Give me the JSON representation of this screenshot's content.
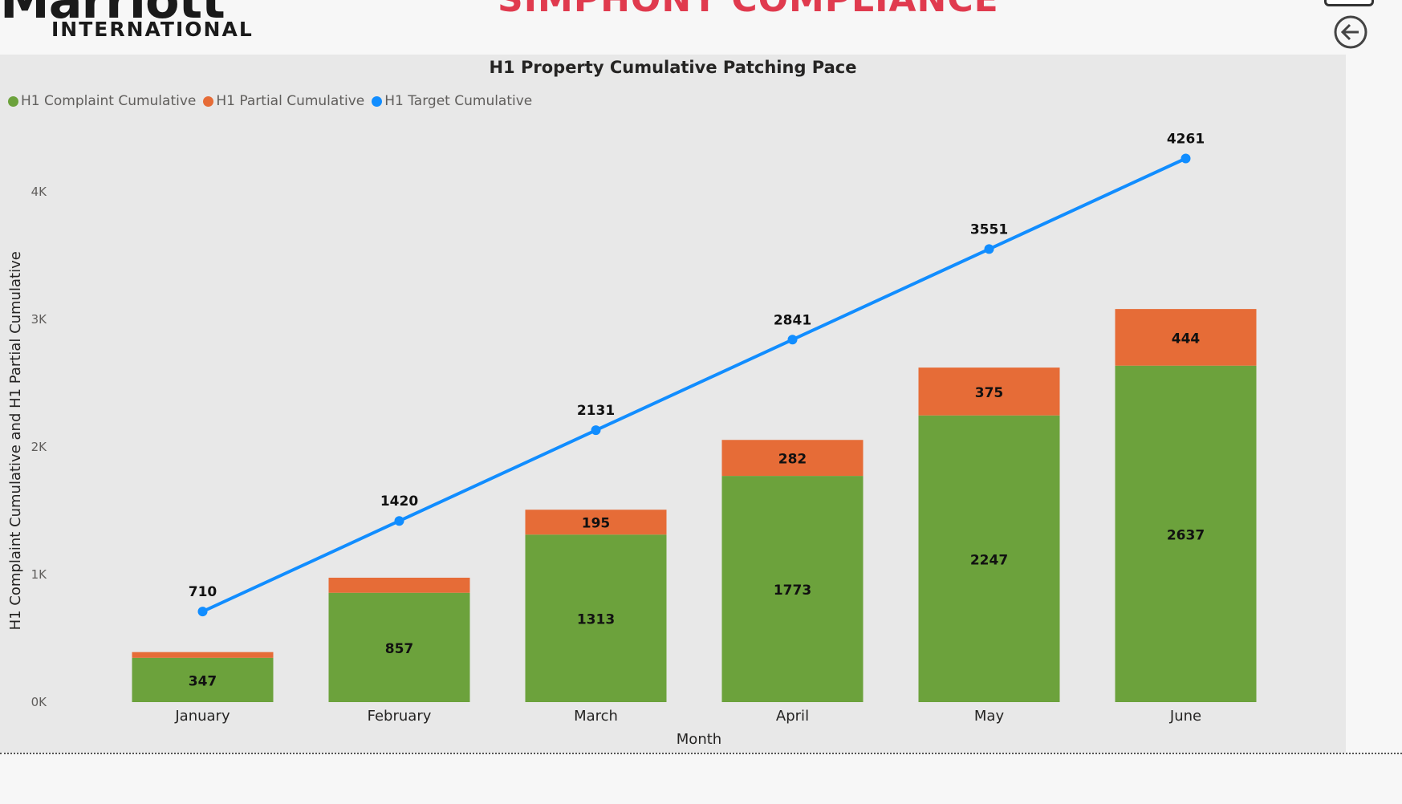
{
  "header": {
    "brand_name": "Marriott",
    "brand_sub": "INTERNATIONAL",
    "page_title": "SIMPHONY COMPLIANCE",
    "back_icon": "back-arrow-icon"
  },
  "colors": {
    "complaint": "#6ca23c",
    "partial": "#e66c37",
    "target": "#118dff",
    "title": "#e03a4e"
  },
  "chart_data": {
    "type": "bar",
    "stacked": true,
    "title": "H1 Property Cumulative Patching Pace",
    "xlabel": "Month",
    "ylabel": "H1 Complaint Cumulative and H1 Partial Cumulative",
    "ylim": [
      0,
      4600
    ],
    "yticks": [
      {
        "value": 0,
        "label": "0K"
      },
      {
        "value": 1000,
        "label": "1K"
      },
      {
        "value": 2000,
        "label": "2K"
      },
      {
        "value": 3000,
        "label": "3K"
      },
      {
        "value": 4000,
        "label": "4K"
      }
    ],
    "categories": [
      "January",
      "February",
      "March",
      "April",
      "May",
      "June"
    ],
    "legend_position": "top-left",
    "series": [
      {
        "name": "H1 Complaint Cumulative",
        "kind": "bar",
        "values": [
          347,
          857,
          1313,
          1773,
          2247,
          2637
        ],
        "labels": [
          "347",
          "857",
          "1313",
          "1773",
          "2247",
          "2637"
        ]
      },
      {
        "name": "H1 Partial Cumulative",
        "kind": "bar",
        "values": [
          45,
          118,
          195,
          282,
          375,
          444
        ],
        "labels": [
          "",
          "",
          "195",
          "282",
          "375",
          "444"
        ]
      },
      {
        "name": "H1 Target Cumulative",
        "kind": "line",
        "values": [
          710,
          1420,
          2131,
          2841,
          3551,
          4261
        ],
        "labels": [
          "710",
          "1420",
          "2131",
          "2841",
          "3551",
          "4261"
        ]
      }
    ]
  }
}
